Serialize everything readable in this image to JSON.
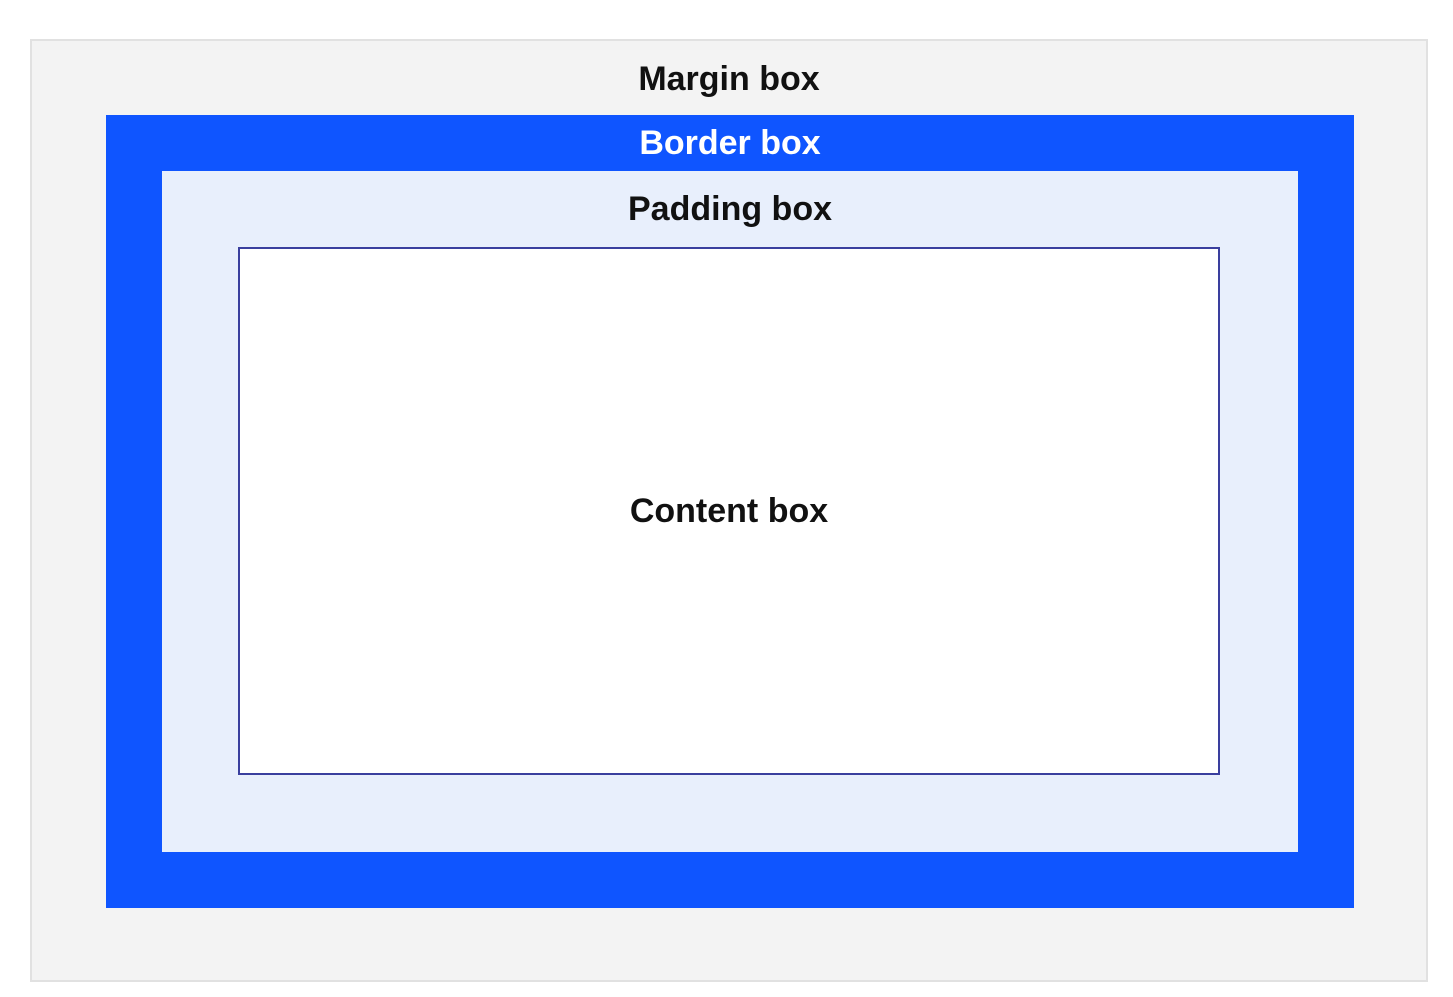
{
  "diagram": {
    "margin_label": "Margin box",
    "border_label": "Border box",
    "padding_label": "Padding box",
    "content_label": "Content box"
  },
  "colors": {
    "margin_fill": "#f3f3f3",
    "margin_outline": "#e1e1e1",
    "border_fill": "#0f55ff",
    "padding_fill": "#e8effc",
    "content_fill": "#ffffff",
    "content_outline": "#3a3f9e",
    "label_dark": "#111111",
    "label_light": "#ffffff"
  }
}
